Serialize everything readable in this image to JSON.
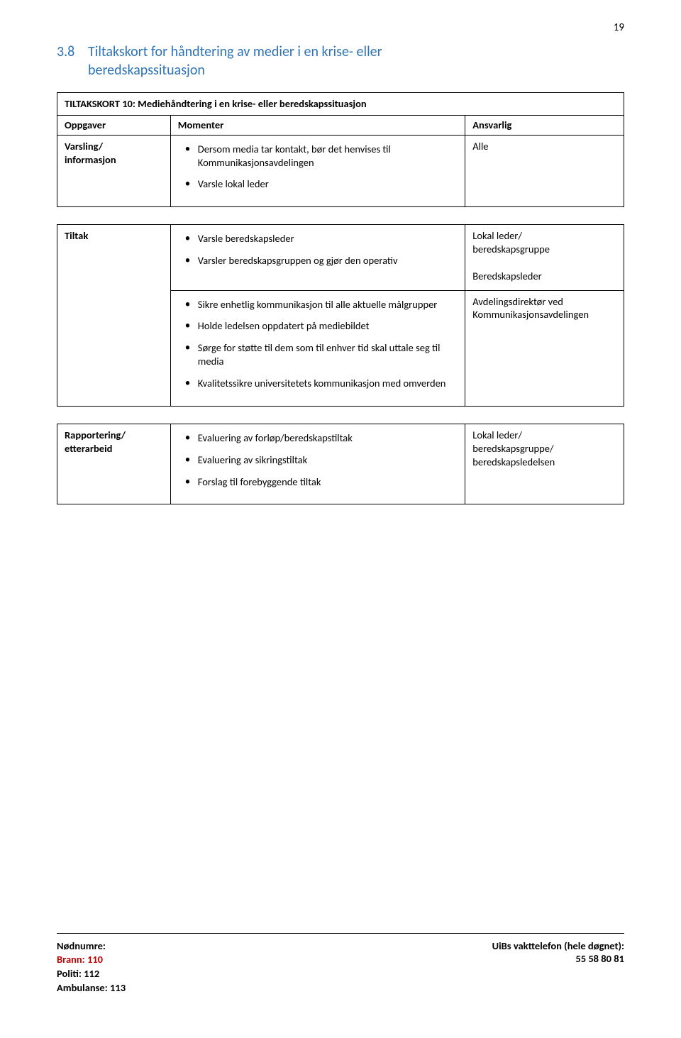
{
  "page_number": "19",
  "section": {
    "number": "3.8",
    "title_line1": "Tiltakskort for håndtering av medier i en krise- eller",
    "title_line2": "beredskapssituasjon",
    "heading_color": "#2e74b5"
  },
  "table_title": "TILTAKSKORT 10: Mediehåndtering i en krise- eller beredskapssituasjon",
  "headers": {
    "oppgaver": "Oppgaver",
    "momenter": "Momenter",
    "ansvarlig": "Ansvarlig"
  },
  "t1": {
    "oppgaver_l1": "Varsling/",
    "oppgaver_l2": "informasjon",
    "m1": "Dersom media tar kontakt, bør det henvises til Kommunikasjonsavdelingen",
    "m2": "Varsle lokal leder",
    "ansvarlig": "Alle"
  },
  "t2r1": {
    "oppgaver": "Tiltak",
    "m1": "Varsle beredskapsleder",
    "m2": "Varsler beredskapsgruppen og gjør den operativ",
    "a_l1": "Lokal leder/",
    "a_l2": "beredskapsgruppe",
    "a2": "Beredskapsleder"
  },
  "t2r2": {
    "m1": "Sikre enhetlig kommunikasjon til alle aktuelle målgrupper",
    "m2": "Holde ledelsen oppdatert på mediebildet",
    "m3": "Sørge for støtte til dem som til enhver tid skal uttale seg til media",
    "m4": "Kvalitetssikre universitetets kommunikasjon med omverden",
    "a_l1": "Avdelingsdirektør ved",
    "a_l2": "Kommunikasjonsavdelingen"
  },
  "t3": {
    "oppgaver_l1": "Rapportering/",
    "oppgaver_l2": "etterarbeid",
    "m1": "Evaluering av forløp/beredskapstiltak",
    "m2": "Evaluering av sikringstiltak",
    "m3": "Forslag til forebyggende tiltak",
    "a_l1": "Lokal leder/",
    "a_l2": "beredskapsgruppe/",
    "a_l3": "beredskapsledelsen"
  },
  "footer": {
    "left_heading": "Nødnumre:",
    "brann": "Brann: 110",
    "politi": "Politi: 112",
    "ambulanse": "Ambulanse: 113",
    "right_heading": "UiBs vakttelefon (hele døgnet):",
    "phone": "55 58 80 81"
  },
  "colors": {
    "heading": "#2e74b5",
    "brann": "#c00000",
    "border": "#000000",
    "text": "#000000",
    "background": "#ffffff"
  }
}
